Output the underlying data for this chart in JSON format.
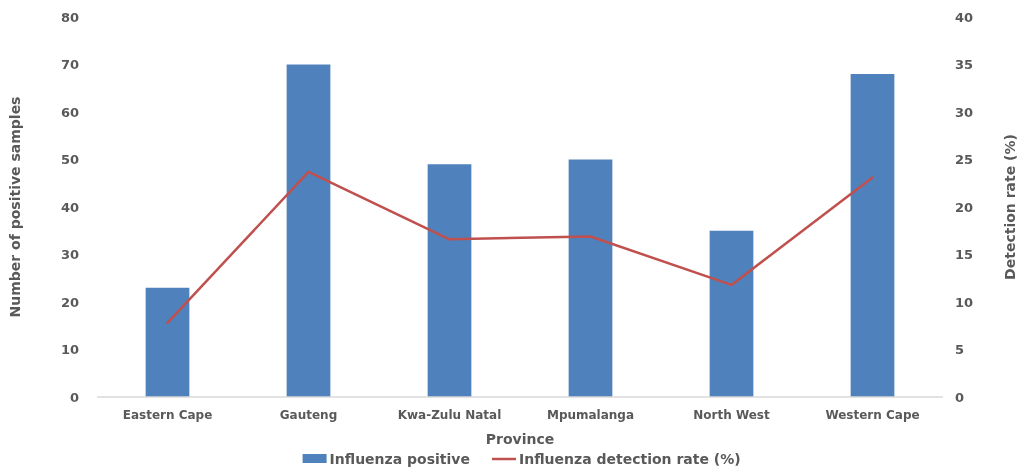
{
  "chart_data": {
    "type": "bar",
    "xlabel": "Province",
    "ylabel": "Number of positive samples",
    "y2label": "Detection rate (%)",
    "categories": [
      "Eastern Cape",
      "Gauteng",
      "Kwa-Zulu Natal",
      "Mpumalanga",
      "North West",
      "Western Cape"
    ],
    "series": [
      {
        "name": "Influenza positive",
        "color": "#4f81bd",
        "values": [
          23,
          70,
          49,
          50,
          35,
          68
        ]
      },
      {
        "name": "Influenza detection rate (%)",
        "type": "line",
        "axis": "y2",
        "color": "#c0504d",
        "values": [
          7.8,
          23.7,
          16.6,
          16.9,
          11.8,
          23.1
        ]
      }
    ],
    "ylim": [
      0,
      80
    ],
    "yticks": [
      0,
      10,
      20,
      30,
      40,
      50,
      60,
      70,
      80
    ],
    "y2lim": [
      0,
      40
    ],
    "y2ticks": [
      0,
      5,
      10,
      15,
      20,
      25,
      30,
      35,
      40
    ],
    "legend": "bottom",
    "marker": "none"
  }
}
